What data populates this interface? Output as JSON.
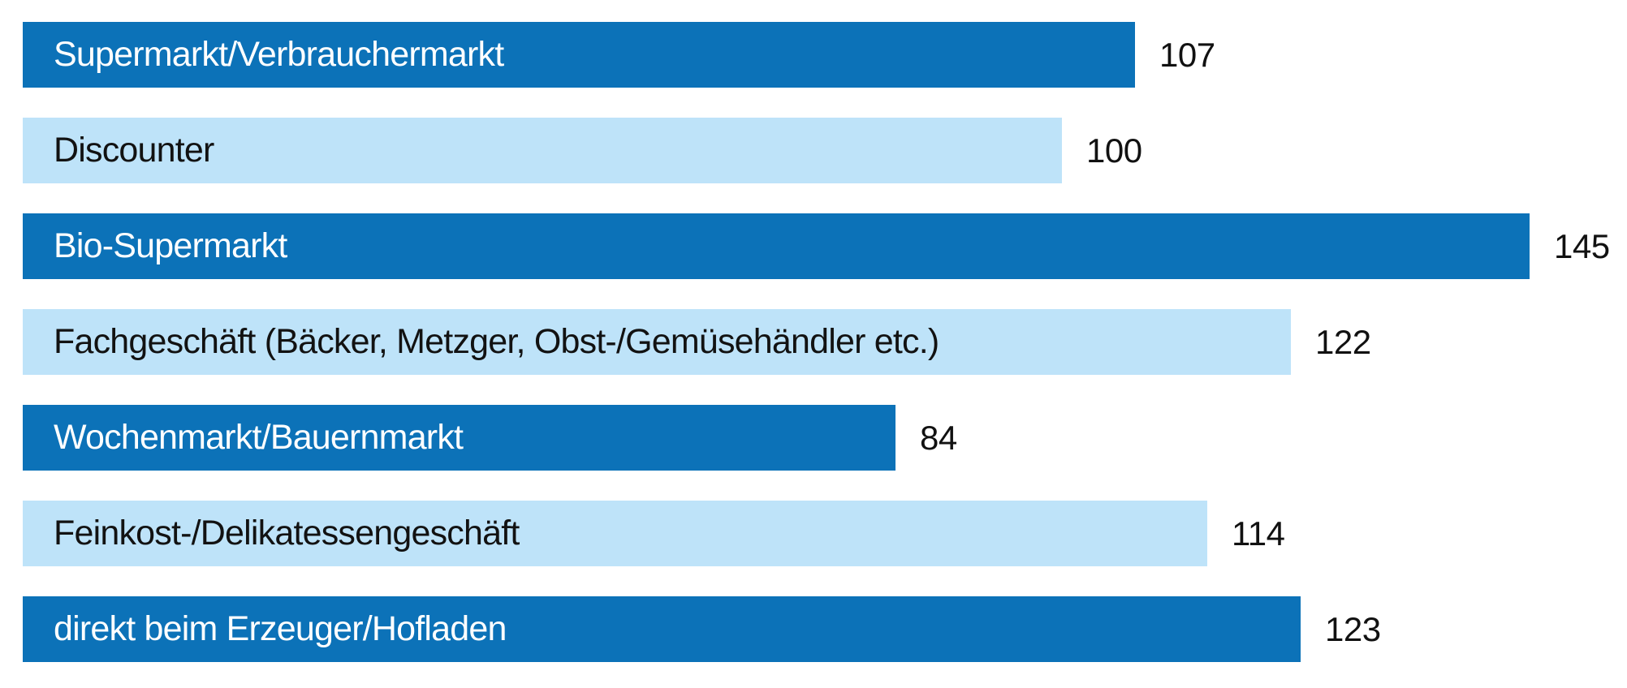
{
  "chart_data": {
    "type": "bar",
    "orientation": "horizontal",
    "categories": [
      "Supermarkt/Verbrauchermarkt",
      "Discounter",
      "Bio-Supermarkt",
      "Fachgeschäft (Bäcker, Metzger, Obst-/Gemüsehändler etc.)",
      "Wochenmarkt/Bauernmarkt",
      "Feinkost-/Delikatessengeschäft",
      "direkt beim Erzeuger/Hofladen"
    ],
    "values": [
      107,
      100,
      145,
      122,
      84,
      114,
      123
    ],
    "value_labels": [
      "107",
      "100",
      "145",
      "122",
      "84",
      "114",
      "123"
    ],
    "xlim": [
      0,
      155
    ],
    "grid": false,
    "legend": false,
    "axes_visible": false,
    "category_label_placement": "inside-left",
    "value_label_placement": "outside-right",
    "bar_color_pattern": [
      "dark",
      "light",
      "dark",
      "light",
      "dark",
      "light",
      "dark"
    ]
  },
  "colors": {
    "bar_dark_blue": "#0c72b8",
    "bar_light_blue": "#bee3f9",
    "text_on_dark": "#ffffff",
    "text_on_light": "#121212",
    "value_text": "#111111",
    "background": "#ffffff"
  }
}
